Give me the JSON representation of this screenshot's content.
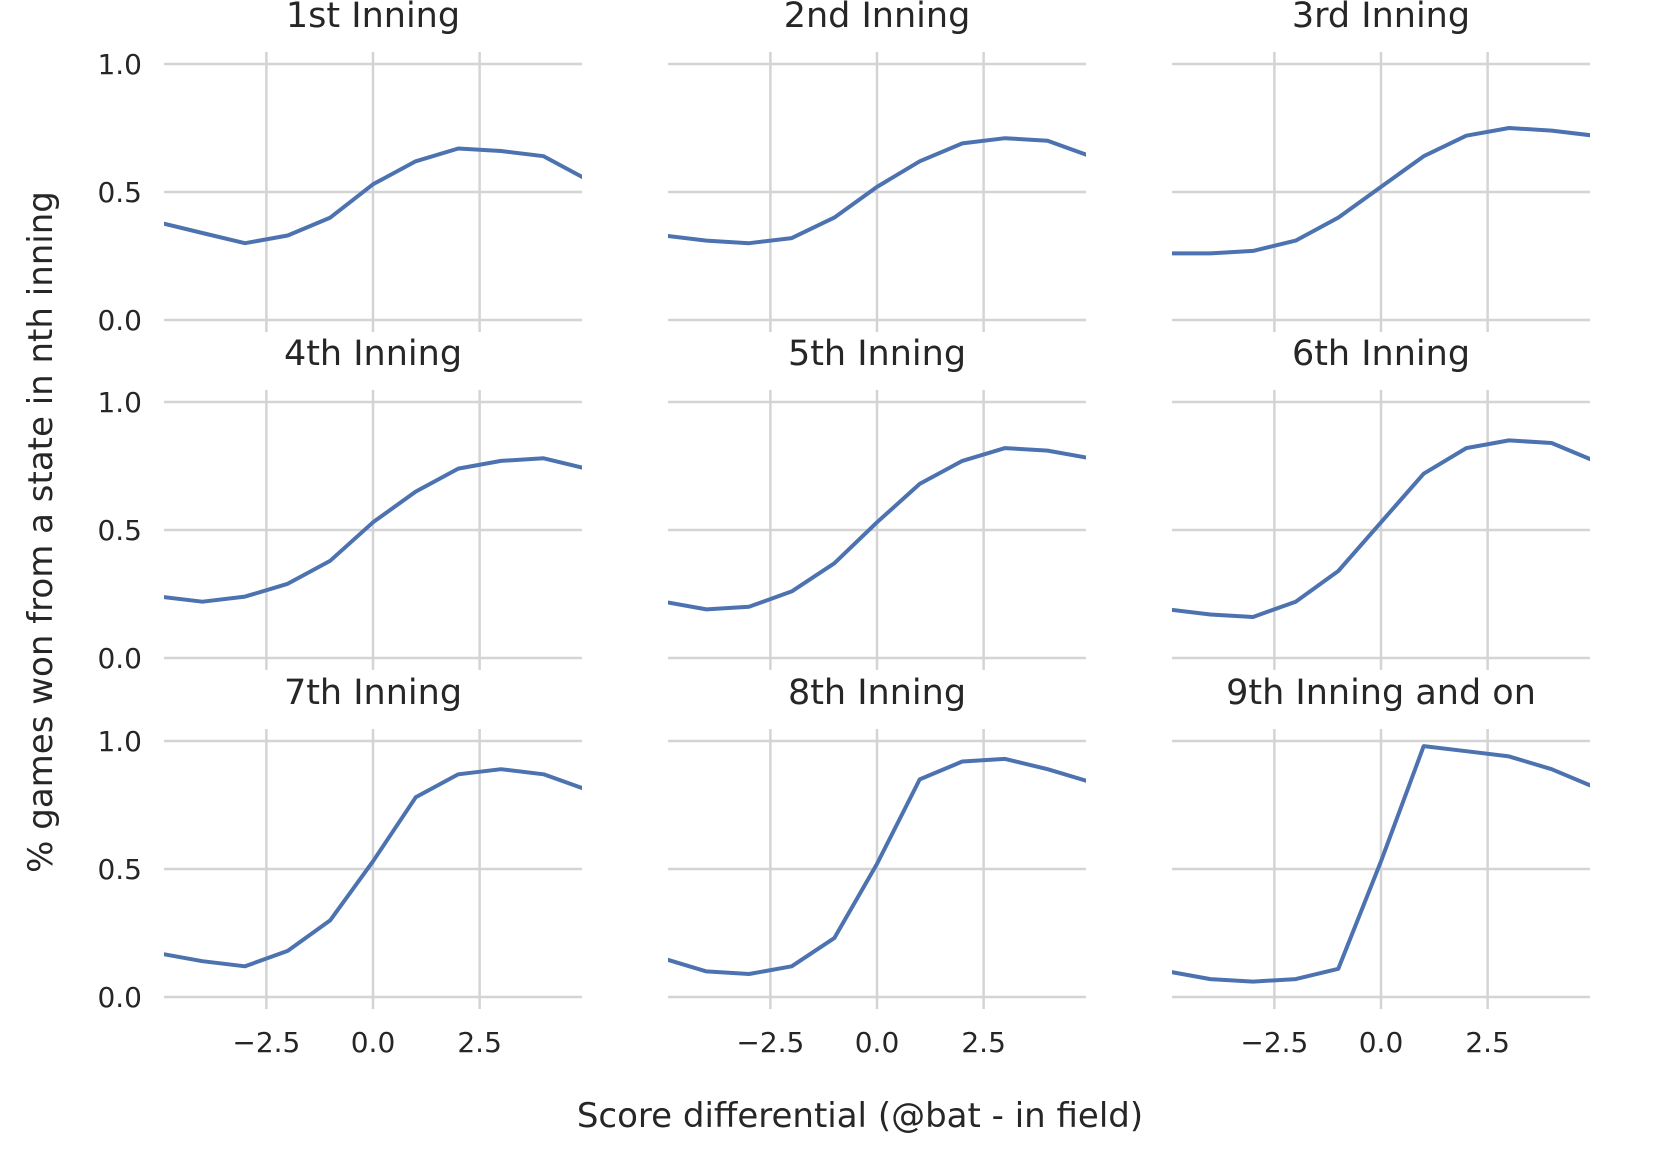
{
  "figure": {
    "xlabel": "Score differential (@bat - in field)",
    "ylabel": "% games won from a state in nth inning",
    "line_color": "#4c72b0",
    "grid_color": "#d4d4d4"
  },
  "chart_data": [
    {
      "type": "line",
      "title": "1st Inning",
      "x": [
        -5,
        -4,
        -3,
        -2,
        -1,
        0,
        1,
        2,
        3,
        4,
        5
      ],
      "series": [
        {
          "values": [
            0.38,
            0.34,
            0.3,
            0.33,
            0.4,
            0.53,
            0.62,
            0.67,
            0.66,
            0.64,
            0.55
          ]
        }
      ],
      "xlim": [
        -4.9,
        4.9
      ],
      "ylim": [
        0,
        1
      ],
      "xticks": [
        "−2.5",
        "0.0",
        "2.5"
      ],
      "xtick_values": [
        -2.5,
        0,
        2.5
      ],
      "yticks": [
        "0.0",
        "0.5",
        "1.0"
      ],
      "ytick_values": [
        0,
        0.5,
        1
      ],
      "grid": true
    },
    {
      "type": "line",
      "title": "2nd Inning",
      "x": [
        -5,
        -4,
        -3,
        -2,
        -1,
        0,
        1,
        2,
        3,
        4,
        5
      ],
      "series": [
        {
          "values": [
            0.33,
            0.31,
            0.3,
            0.32,
            0.4,
            0.52,
            0.62,
            0.69,
            0.71,
            0.7,
            0.64
          ]
        }
      ],
      "xlim": [
        -4.9,
        4.9
      ],
      "ylim": [
        0,
        1
      ],
      "xticks": [
        "−2.5",
        "0.0",
        "2.5"
      ],
      "xtick_values": [
        -2.5,
        0,
        2.5
      ],
      "yticks": [
        "0.0",
        "0.5",
        "1.0"
      ],
      "ytick_values": [
        0,
        0.5,
        1
      ],
      "grid": true
    },
    {
      "type": "line",
      "title": "3rd Inning",
      "x": [
        -5,
        -4,
        -3,
        -2,
        -1,
        0,
        1,
        2,
        3,
        4,
        5
      ],
      "series": [
        {
          "values": [
            0.26,
            0.26,
            0.27,
            0.31,
            0.4,
            0.52,
            0.64,
            0.72,
            0.75,
            0.74,
            0.72
          ]
        }
      ],
      "xlim": [
        -4.9,
        4.9
      ],
      "ylim": [
        0,
        1
      ],
      "xticks": [
        "−2.5",
        "0.0",
        "2.5"
      ],
      "xtick_values": [
        -2.5,
        0,
        2.5
      ],
      "yticks": [
        "0.0",
        "0.5",
        "1.0"
      ],
      "ytick_values": [
        0,
        0.5,
        1
      ],
      "grid": true
    },
    {
      "type": "line",
      "title": "4th Inning",
      "x": [
        -5,
        -4,
        -3,
        -2,
        -1,
        0,
        1,
        2,
        3,
        4,
        5
      ],
      "series": [
        {
          "values": [
            0.24,
            0.22,
            0.24,
            0.29,
            0.38,
            0.53,
            0.65,
            0.74,
            0.77,
            0.78,
            0.74
          ]
        }
      ],
      "xlim": [
        -4.9,
        4.9
      ],
      "ylim": [
        0,
        1
      ],
      "xticks": [
        "−2.5",
        "0.0",
        "2.5"
      ],
      "xtick_values": [
        -2.5,
        0,
        2.5
      ],
      "yticks": [
        "0.0",
        "0.5",
        "1.0"
      ],
      "ytick_values": [
        0,
        0.5,
        1
      ],
      "grid": true
    },
    {
      "type": "line",
      "title": "5th Inning",
      "x": [
        -5,
        -4,
        -3,
        -2,
        -1,
        0,
        1,
        2,
        3,
        4,
        5
      ],
      "series": [
        {
          "values": [
            0.22,
            0.19,
            0.2,
            0.26,
            0.37,
            0.53,
            0.68,
            0.77,
            0.82,
            0.81,
            0.78
          ]
        }
      ],
      "xlim": [
        -4.9,
        4.9
      ],
      "ylim": [
        0,
        1
      ],
      "xticks": [
        "−2.5",
        "0.0",
        "2.5"
      ],
      "xtick_values": [
        -2.5,
        0,
        2.5
      ],
      "yticks": [
        "0.0",
        "0.5",
        "1.0"
      ],
      "ytick_values": [
        0,
        0.5,
        1
      ],
      "grid": true
    },
    {
      "type": "line",
      "title": "6th Inning",
      "x": [
        -5,
        -4,
        -3,
        -2,
        -1,
        0,
        1,
        2,
        3,
        4,
        5
      ],
      "series": [
        {
          "values": [
            0.19,
            0.17,
            0.16,
            0.22,
            0.34,
            0.53,
            0.72,
            0.82,
            0.85,
            0.84,
            0.77
          ]
        }
      ],
      "xlim": [
        -4.9,
        4.9
      ],
      "ylim": [
        0,
        1
      ],
      "xticks": [
        "−2.5",
        "0.0",
        "2.5"
      ],
      "xtick_values": [
        -2.5,
        0,
        2.5
      ],
      "yticks": [
        "0.0",
        "0.5",
        "1.0"
      ],
      "ytick_values": [
        0,
        0.5,
        1
      ],
      "grid": true
    },
    {
      "type": "line",
      "title": "7th Inning",
      "x": [
        -5,
        -4,
        -3,
        -2,
        -1,
        0,
        1,
        2,
        3,
        4,
        5
      ],
      "series": [
        {
          "values": [
            0.17,
            0.14,
            0.12,
            0.18,
            0.3,
            0.53,
            0.78,
            0.87,
            0.89,
            0.87,
            0.81
          ]
        }
      ],
      "xlim": [
        -4.9,
        4.9
      ],
      "ylim": [
        0,
        1
      ],
      "xticks": [
        "−2.5",
        "0.0",
        "2.5"
      ],
      "xtick_values": [
        -2.5,
        0,
        2.5
      ],
      "yticks": [
        "0.0",
        "0.5",
        "1.0"
      ],
      "ytick_values": [
        0,
        0.5,
        1
      ],
      "grid": true
    },
    {
      "type": "line",
      "title": "8th Inning",
      "x": [
        -5,
        -4,
        -3,
        -2,
        -1,
        0,
        1,
        2,
        3,
        4,
        5
      ],
      "series": [
        {
          "values": [
            0.15,
            0.1,
            0.09,
            0.12,
            0.23,
            0.52,
            0.85,
            0.92,
            0.93,
            0.89,
            0.84
          ]
        }
      ],
      "xlim": [
        -4.9,
        4.9
      ],
      "ylim": [
        0,
        1
      ],
      "xticks": [
        "−2.5",
        "0.0",
        "2.5"
      ],
      "xtick_values": [
        -2.5,
        0,
        2.5
      ],
      "yticks": [
        "0.0",
        "0.5",
        "1.0"
      ],
      "ytick_values": [
        0,
        0.5,
        1
      ],
      "grid": true
    },
    {
      "type": "line",
      "title": "9th Inning and on",
      "x": [
        -5,
        -4,
        -3,
        -2,
        -1,
        0,
        1,
        2,
        3,
        4,
        5
      ],
      "series": [
        {
          "values": [
            0.1,
            0.07,
            0.06,
            0.07,
            0.11,
            0.53,
            0.98,
            0.96,
            0.94,
            0.89,
            0.82
          ]
        }
      ],
      "xlim": [
        -4.9,
        4.9
      ],
      "ylim": [
        0,
        1
      ],
      "xticks": [
        "−2.5",
        "0.0",
        "2.5"
      ],
      "xtick_values": [
        -2.5,
        0,
        2.5
      ],
      "yticks": [
        "0.0",
        "0.5",
        "1.0"
      ],
      "ytick_values": [
        0,
        0.5,
        1
      ],
      "grid": true
    }
  ]
}
